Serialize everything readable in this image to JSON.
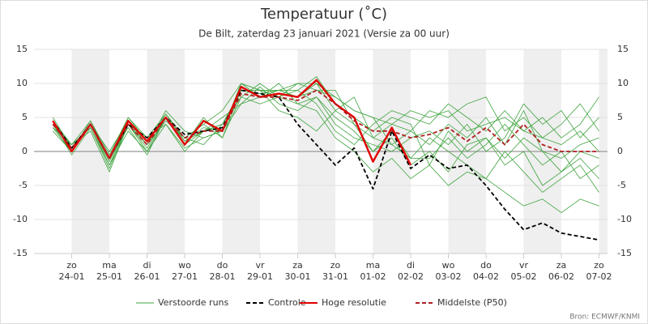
{
  "chart_data": {
    "type": "line",
    "title": "Temperatuur (˚C)",
    "subtitle": "De Bilt, zaterdag 23 januari 2021 (Versie za 00 uur)",
    "source": "Bron: ECMWF/KNMI",
    "categories": [
      null,
      "24-01",
      null,
      "25-01",
      null,
      "26-01",
      null,
      "27-01",
      null,
      "28-01",
      null,
      "29-01",
      null,
      "30-01",
      null,
      "31-01",
      null,
      "01-02",
      null,
      "02-02",
      null,
      "03-02",
      null,
      "04-02",
      null,
      "05-02",
      null,
      "06-02",
      null,
      "07-02"
    ],
    "weekdays": [
      null,
      "zo",
      null,
      "ma",
      null,
      "di",
      null,
      "wo",
      null,
      "do",
      null,
      "vr",
      null,
      "za",
      null,
      "zo",
      null,
      "ma",
      null,
      "di",
      null,
      "wo",
      null,
      "do",
      null,
      "vr",
      null,
      "za",
      null,
      "zo"
    ],
    "ylim": [
      -15,
      15
    ],
    "yticks": [
      -15,
      -10,
      -5,
      0,
      5,
      10,
      15
    ],
    "grid": true,
    "ensemble": {
      "name": "Verstoorde runs",
      "color": "#3fa43f",
      "members": [
        [
          4,
          0.5,
          4,
          -1.5,
          4,
          0.5,
          5,
          1.5,
          3,
          4,
          9,
          8.5,
          9,
          8,
          10,
          6,
          4,
          2,
          1,
          3,
          1,
          4,
          2,
          5,
          1,
          6,
          0,
          -1,
          1,
          2
        ],
        [
          3.5,
          1,
          3.5,
          -2,
          3,
          0,
          4,
          0.5,
          2,
          3,
          7,
          9.5,
          7,
          6,
          8,
          5,
          3,
          0,
          2,
          -2,
          0,
          -3,
          1,
          2,
          -2,
          0,
          -5,
          -3,
          -1,
          -4
        ],
        [
          4.5,
          0,
          4.5,
          -0.5,
          5,
          2,
          5.5,
          2,
          4,
          6,
          10,
          9,
          9,
          9,
          7,
          3,
          1,
          4,
          6,
          5,
          4,
          7,
          5,
          3,
          6,
          3,
          5,
          2,
          4,
          8
        ],
        [
          4,
          1,
          3,
          -3,
          4,
          1,
          4.5,
          2,
          1,
          4,
          8,
          7,
          8,
          10,
          9,
          8,
          6,
          5,
          1,
          -1,
          2,
          0,
          -2,
          -4,
          0,
          -3,
          -6,
          -4,
          -2,
          -6
        ],
        [
          3,
          0,
          4,
          -1,
          3.5,
          -0.5,
          5,
          1,
          5,
          2,
          9,
          9,
          6,
          5,
          3,
          6,
          8,
          2,
          4,
          3,
          6,
          5,
          7,
          8,
          3,
          5,
          2,
          4,
          7,
          3
        ],
        [
          5,
          0.5,
          4,
          0,
          4.5,
          1,
          6,
          3,
          2,
          3,
          10,
          8,
          9,
          8,
          9,
          9,
          4,
          0,
          3,
          -1,
          -1,
          2,
          -1,
          1,
          4,
          1,
          -2,
          0,
          -4,
          -2
        ],
        [
          4,
          -0.5,
          3.5,
          -2.5,
          4,
          2,
          4,
          0,
          3,
          5,
          7,
          8,
          10,
          7,
          8,
          4,
          2,
          1,
          0,
          2,
          3,
          1,
          4,
          0,
          2,
          7,
          4,
          6,
          2,
          5
        ],
        [
          4.5,
          1,
          4.5,
          -1,
          5,
          1.5,
          5,
          2,
          4,
          2,
          8,
          10,
          8,
          9,
          11,
          7,
          5,
          3,
          5,
          4,
          -2,
          3,
          0,
          2,
          -1,
          2,
          0,
          -3,
          0,
          -1
        ],
        [
          3.5,
          0,
          4,
          -2,
          4,
          0,
          5,
          1,
          3,
          4,
          9,
          9,
          8,
          7,
          6,
          2,
          0,
          -3,
          -1,
          -4,
          -2,
          -5,
          -3,
          -4,
          -6,
          -8,
          -7,
          -9,
          -7,
          -8
        ],
        [
          4,
          0.5,
          4,
          -1,
          4,
          1,
          5.5,
          1.5,
          3.5,
          3,
          10,
          9,
          9,
          10,
          10,
          8,
          6,
          5,
          4,
          6,
          5,
          6,
          3,
          4,
          5,
          3,
          2,
          1,
          3,
          0
        ]
      ]
    },
    "series": [
      {
        "name": "Controle",
        "color": "#000000",
        "dashed": true,
        "values": [
          4.5,
          0.5,
          4,
          -1,
          4,
          2,
          5,
          2.5,
          3,
          3.5,
          9,
          8.5,
          8,
          4,
          1,
          -2,
          0.5,
          -5.5,
          3,
          -2.5,
          -0.5,
          -2.5,
          -2,
          -5,
          -8.5,
          -11.5,
          -10.5,
          -12,
          -12.5,
          -13
        ]
      },
      {
        "name": "Hoge resolutie",
        "color": "#e00000",
        "dashed": false,
        "values": [
          4.5,
          0,
          4,
          -1,
          4.5,
          1.5,
          5,
          1,
          4.5,
          3,
          9.5,
          8,
          8.5,
          8,
          10.5,
          7,
          5,
          -1.5,
          3.5,
          -2,
          null,
          null,
          null,
          null,
          null,
          null,
          null,
          null,
          null,
          null
        ]
      },
      {
        "name": "Middelste (P50)",
        "color": "#b02020",
        "dashed": true,
        "values": [
          4,
          0.5,
          4,
          -1,
          4,
          1,
          5,
          2,
          3,
          3,
          8.5,
          8,
          8,
          7.5,
          9,
          7,
          4.5,
          3,
          3,
          2,
          2.5,
          3.5,
          1.5,
          3.5,
          1,
          4,
          1,
          0,
          0,
          0
        ]
      }
    ]
  }
}
